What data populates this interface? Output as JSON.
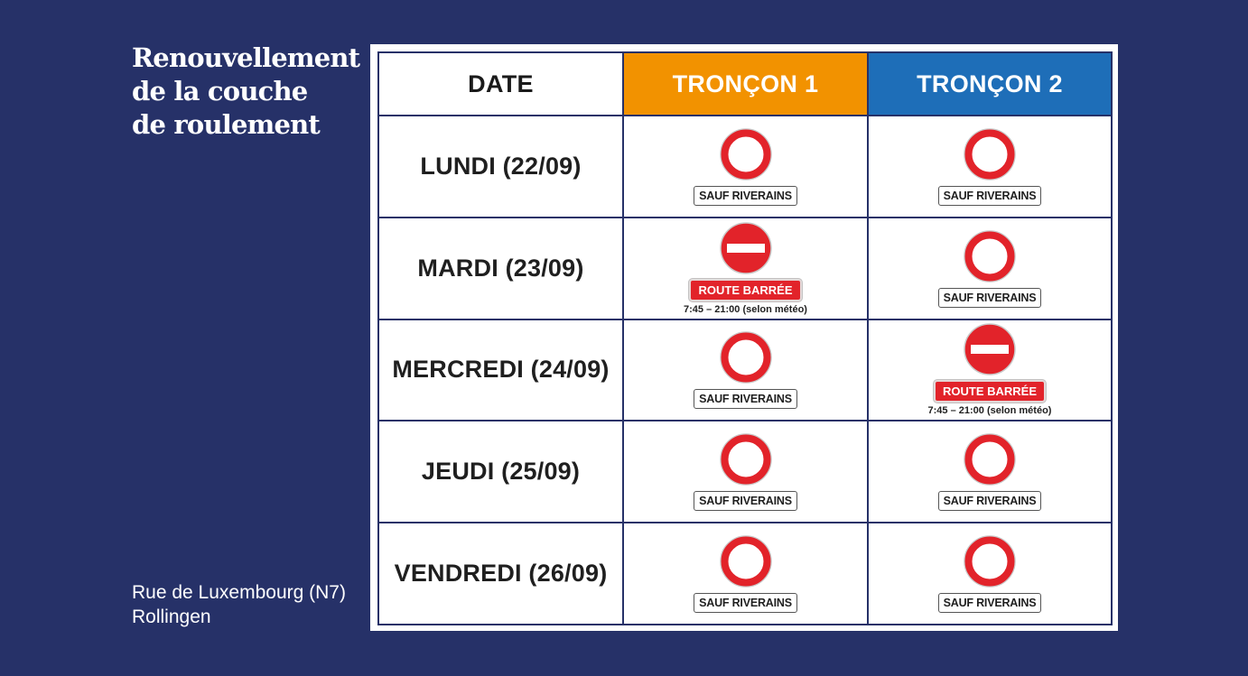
{
  "title": {
    "line1": "Renouvellement",
    "line2": "de la couche",
    "line3": "de roulement"
  },
  "location": {
    "street": "Rue de Luxembourg (N7)",
    "town": "Rollingen"
  },
  "table": {
    "headers": {
      "date": "DATE",
      "troncon1": "TRONÇON 1",
      "troncon2": "TRONÇON 2"
    },
    "header_colors": {
      "troncon1": "#f29200",
      "troncon2": "#1e6eb8"
    },
    "rows": [
      {
        "day": "LUNDI (22/09)",
        "troncon1": {
          "sign": "no-vehicles-sign-icon",
          "plate": "SAUF RIVERAINS",
          "note": ""
        },
        "troncon2": {
          "sign": "no-vehicles-sign-icon",
          "plate": "SAUF RIVERAINS",
          "note": ""
        }
      },
      {
        "day": "MARDI (23/09)",
        "troncon1": {
          "sign": "no-entry-sign-icon",
          "plate": "ROUTE BARRÉE",
          "note": "7:45 – 21:00 (selon météo)"
        },
        "troncon2": {
          "sign": "no-vehicles-sign-icon",
          "plate": "SAUF RIVERAINS",
          "note": ""
        }
      },
      {
        "day": "MERCREDI (24/09)",
        "troncon1": {
          "sign": "no-vehicles-sign-icon",
          "plate": "SAUF RIVERAINS",
          "note": ""
        },
        "troncon2": {
          "sign": "no-entry-sign-icon",
          "plate": "ROUTE BARRÉE",
          "note": "7:45 – 21:00 (selon météo)"
        }
      },
      {
        "day": "JEUDI (25/09)",
        "troncon1": {
          "sign": "no-vehicles-sign-icon",
          "plate": "SAUF RIVERAINS",
          "note": ""
        },
        "troncon2": {
          "sign": "no-vehicles-sign-icon",
          "plate": "SAUF RIVERAINS",
          "note": ""
        }
      },
      {
        "day": "VENDREDI (26/09)",
        "troncon1": {
          "sign": "no-vehicles-sign-icon",
          "plate": "SAUF RIVERAINS",
          "note": ""
        },
        "troncon2": {
          "sign": "no-vehicles-sign-icon",
          "plate": "SAUF RIVERAINS",
          "note": ""
        }
      }
    ]
  },
  "colors": {
    "background": "#263168",
    "sign_red": "#e2232a",
    "table_border": "#263168"
  }
}
